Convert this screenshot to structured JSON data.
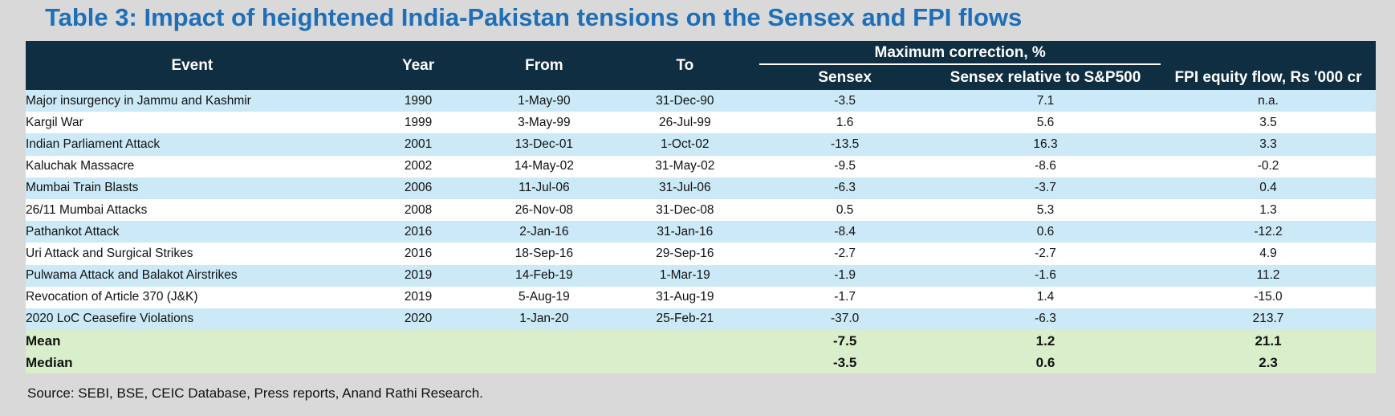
{
  "title": "Table 3: Impact of heightened India-Pakistan tensions on the Sensex and FPI flows",
  "headers": {
    "event": "Event",
    "year": "Year",
    "from": "From",
    "to": "To",
    "group": "Maximum correction, %",
    "sensex": "Sensex",
    "sensex_rel": "Sensex relative to S&P500",
    "fpi": "FPI equity flow, Rs '000 cr"
  },
  "rows": [
    {
      "event": "Major insurgency in Jammu and Kashmir",
      "year": "1990",
      "from": "1-May-90",
      "to": "31-Dec-90",
      "sensex": "-3.5",
      "rel": "7.1",
      "fpi": "n.a."
    },
    {
      "event": "Kargil War",
      "year": "1999",
      "from": "3-May-99",
      "to": "26-Jul-99",
      "sensex": "1.6",
      "rel": "5.6",
      "fpi": "3.5"
    },
    {
      "event": "Indian Parliament Attack",
      "year": "2001",
      "from": "13-Dec-01",
      "to": "1-Oct-02",
      "sensex": "-13.5",
      "rel": "16.3",
      "fpi": "3.3"
    },
    {
      "event": "Kaluchak Massacre",
      "year": "2002",
      "from": "14-May-02",
      "to": "31-May-02",
      "sensex": "-9.5",
      "rel": "-8.6",
      "fpi": "-0.2"
    },
    {
      "event": "Mumbai Train Blasts",
      "year": "2006",
      "from": "11-Jul-06",
      "to": "31-Jul-06",
      "sensex": "-6.3",
      "rel": "-3.7",
      "fpi": "0.4"
    },
    {
      "event": "26/11 Mumbai Attacks",
      "year": "2008",
      "from": "26-Nov-08",
      "to": "31-Dec-08",
      "sensex": "0.5",
      "rel": "5.3",
      "fpi": "1.3"
    },
    {
      "event": "Pathankot Attack",
      "year": "2016",
      "from": "2-Jan-16",
      "to": "31-Jan-16",
      "sensex": "-8.4",
      "rel": "0.6",
      "fpi": "-12.2"
    },
    {
      "event": "Uri Attack and Surgical Strikes",
      "year": "2016",
      "from": "18-Sep-16",
      "to": "29-Sep-16",
      "sensex": "-2.7",
      "rel": "-2.7",
      "fpi": "4.9"
    },
    {
      "event": "Pulwama Attack and Balakot Airstrikes",
      "year": "2019",
      "from": "14-Feb-19",
      "to": "1-Mar-19",
      "sensex": "-1.9",
      "rel": "-1.6",
      "fpi": "11.2"
    },
    {
      "event": "Revocation of Article 370 (J&K)",
      "year": "2019",
      "from": "5-Aug-19",
      "to": "31-Aug-19",
      "sensex": "-1.7",
      "rel": "1.4",
      "fpi": "-15.0"
    },
    {
      "event": "2020 LoC Ceasefire Violations",
      "year": "2020",
      "from": "1-Jan-20",
      "to": "25-Feb-21",
      "sensex": "-37.0",
      "rel": "-6.3",
      "fpi": "213.7"
    }
  ],
  "summary": [
    {
      "label": "Mean",
      "sensex": "-7.5",
      "rel": "1.2",
      "fpi": "21.1"
    },
    {
      "label": "Median",
      "sensex": "-3.5",
      "rel": "0.6",
      "fpi": "2.3"
    }
  ],
  "source": "Source: SEBI, BSE, CEIC Database, Press reports, Anand Rathi Research.",
  "colors": {
    "title": "#1e6fb8",
    "header_bg": "#0f2e42",
    "row_blue": "#cbe9f6",
    "row_white": "#ffffff",
    "summary_green": "#d9efcc",
    "page_bg": "#d9d9d9"
  }
}
